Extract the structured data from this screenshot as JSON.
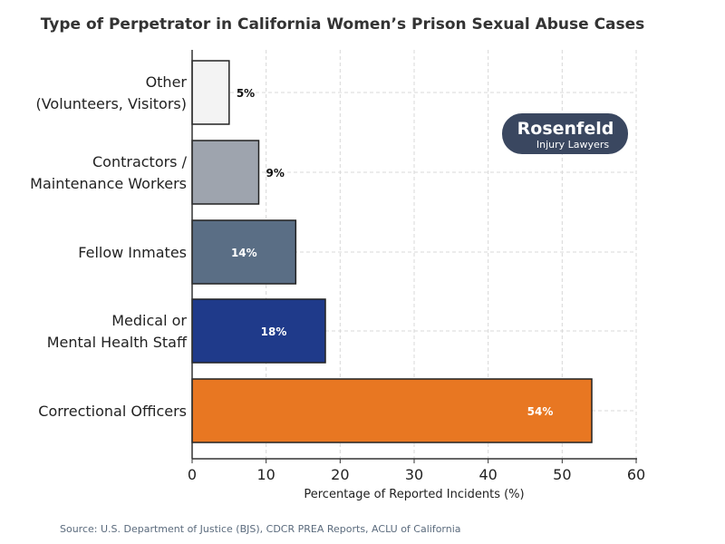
{
  "chart_data": {
    "type": "bar",
    "orientation": "horizontal",
    "title": "Type of Perpetrator in California Women’s Prison Sexual Abuse Cases",
    "xlabel": "Percentage of Reported Incidents (%)",
    "ylabel": "",
    "xlim": [
      0,
      60
    ],
    "xticks": [
      "0",
      "10",
      "20",
      "30",
      "40",
      "50",
      "60"
    ],
    "grid": true,
    "categories": [
      [
        "Correctional Officers"
      ],
      [
        "Medical or",
        "Mental Health Staff"
      ],
      [
        "Fellow Inmates"
      ],
      [
        "Contractors /",
        "Maintenance Workers"
      ],
      [
        "Other",
        "(Volunteers, Visitors)"
      ]
    ],
    "values": [
      54,
      18,
      14,
      9,
      5
    ],
    "data_labels": [
      "54%",
      "18%",
      "14%",
      "9%",
      "5%"
    ],
    "colors": [
      "#e87722",
      "#1f3a8a",
      "#5a6e85",
      "#9ea4ae",
      "#f3f3f3"
    ],
    "source": "Source: U.S. Department of Justice (BJS), CDCR PREA Reports, ACLU of California"
  },
  "logo": {
    "line1": "Rosenfeld",
    "line2": "Injury Lawyers",
    "color": "#3a4760"
  }
}
